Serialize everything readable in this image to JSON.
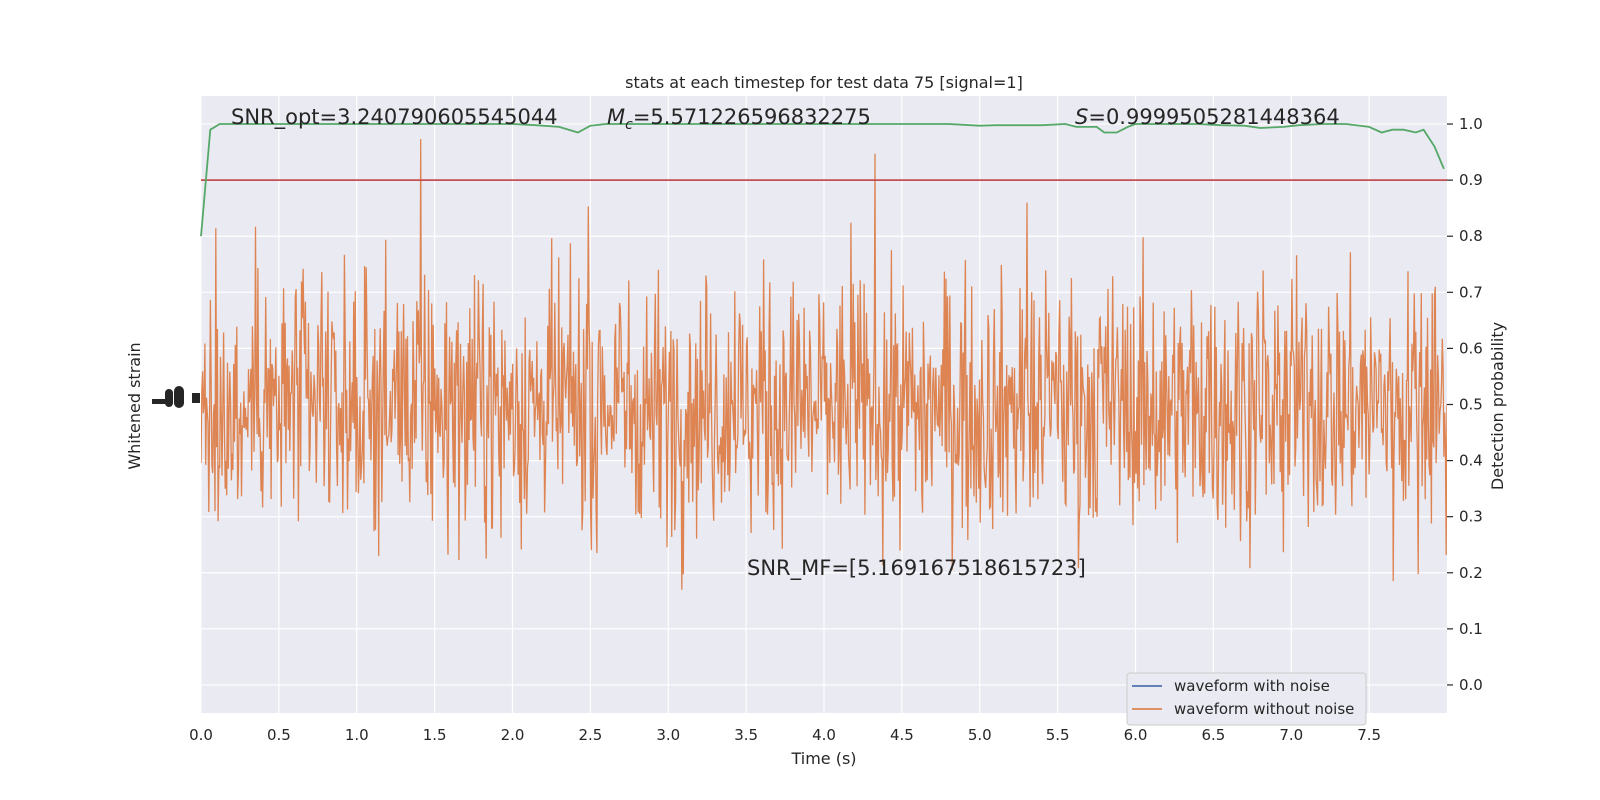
{
  "chart_data": {
    "type": "line",
    "title": "stats at each timestep for test data 75 [signal=1]",
    "xlabel": "Time (s)",
    "ylabel_left": "Whitened strain",
    "ylabel_right": "Detection probability",
    "xlim": [
      0.0,
      8.0
    ],
    "ylim_right": [
      -0.05,
      1.05
    ],
    "x_ticks": [
      "0.0",
      "0.5",
      "1.0",
      "1.5",
      "2.0",
      "2.5",
      "3.0",
      "3.5",
      "4.0",
      "4.5",
      "5.0",
      "5.5",
      "6.0",
      "6.5",
      "7.0",
      "7.5"
    ],
    "x_tick_values": [
      0.0,
      0.5,
      1.0,
      1.5,
      2.0,
      2.5,
      3.0,
      3.5,
      4.0,
      4.5,
      5.0,
      5.5,
      6.0,
      6.5,
      7.0,
      7.5
    ],
    "y_right_ticks": [
      "0.0",
      "0.1",
      "0.2",
      "0.3",
      "0.4",
      "0.5",
      "0.6",
      "0.7",
      "0.8",
      "0.9",
      "1.0"
    ],
    "y_right_tick_values": [
      0.0,
      0.1,
      0.2,
      0.3,
      0.4,
      0.5,
      0.6,
      0.7,
      0.8,
      0.9,
      1.0
    ],
    "grid": true,
    "legend_position": "bottom-right",
    "threshold": 0.9,
    "annotations": {
      "snr_opt": "SNR_opt=3.240790605545044",
      "mc_prefix": "M",
      "mc_sub": "c",
      "mc_value": "=5.571226596832275",
      "s_prefix": "S",
      "s_value": "=0.9999505281448364",
      "snr_mf": "SNR_MF=[5.169167518615723]"
    },
    "series": [
      {
        "name": "waveform with noise",
        "color": "#4c72b0"
      },
      {
        "name": "waveform without noise",
        "color": "#dd8452"
      }
    ],
    "probability": {
      "color": "#55a868",
      "x": [
        0.0,
        0.06,
        0.12,
        0.2,
        0.4,
        0.6,
        0.8,
        1.0,
        1.2,
        1.4,
        1.6,
        1.8,
        2.0,
        2.15,
        2.3,
        2.42,
        2.5,
        2.6,
        2.8,
        3.0,
        3.2,
        3.4,
        3.6,
        3.8,
        4.0,
        4.2,
        4.4,
        4.6,
        4.8,
        5.0,
        5.1,
        5.2,
        5.4,
        5.55,
        5.62,
        5.75,
        5.8,
        5.88,
        5.95,
        6.0,
        6.2,
        6.4,
        6.55,
        6.7,
        6.8,
        6.95,
        7.05,
        7.2,
        7.35,
        7.5,
        7.58,
        7.65,
        7.72,
        7.8,
        7.85,
        7.92,
        7.98
      ],
      "y": [
        0.8,
        0.99,
        1.0,
        1.0,
        1.0,
        1.0,
        1.0,
        1.0,
        1.0,
        1.0,
        1.0,
        1.0,
        1.0,
        0.998,
        0.995,
        0.985,
        0.997,
        1.0,
        1.0,
        1.0,
        1.0,
        1.0,
        1.0,
        1.0,
        1.0,
        1.0,
        1.0,
        1.0,
        1.0,
        0.997,
        0.998,
        0.998,
        0.998,
        1.0,
        0.995,
        0.995,
        0.985,
        0.985,
        0.995,
        1.0,
        1.0,
        1.0,
        0.998,
        0.997,
        0.993,
        0.995,
        0.998,
        1.0,
        1.0,
        0.995,
        0.985,
        0.99,
        0.99,
        0.985,
        0.99,
        0.96,
        0.92
      ]
    }
  }
}
